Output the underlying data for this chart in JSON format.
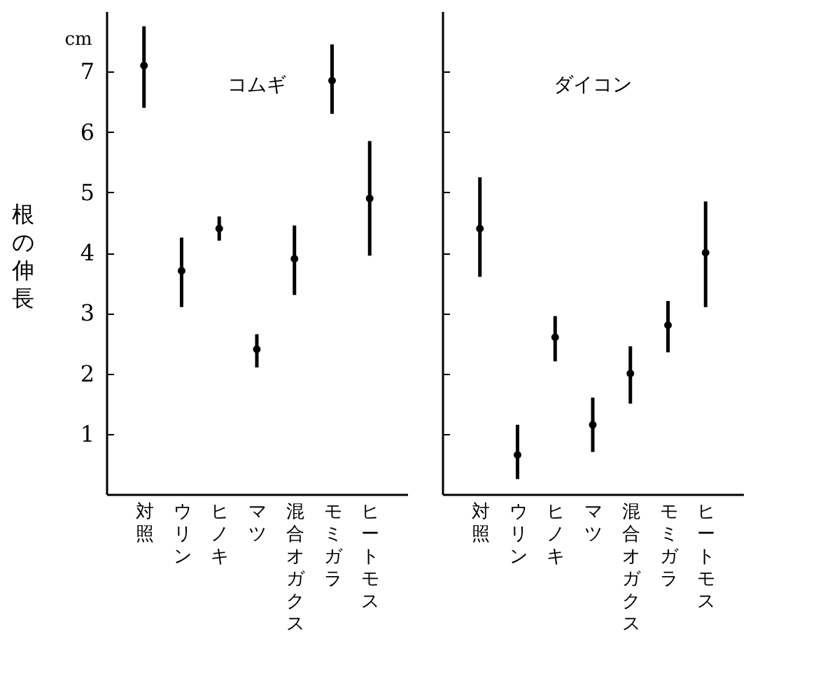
{
  "chart_data": [
    {
      "type": "scatter",
      "title": "コムギ",
      "ylabel": "根の伸長",
      "annotations": [
        "cm"
      ],
      "categories": [
        "対照",
        "ウリン",
        "ヒノキ",
        "マツ",
        "混合オガクス",
        "モミガラ",
        "ヒートモス"
      ],
      "series": [
        {
          "color": "#000000",
          "values": [
            7.1,
            3.7,
            4.4,
            2.4,
            3.9,
            6.85,
            4.9
          ],
          "errors": [
            [
              6.4,
              7.75
            ],
            [
              3.1,
              4.25
            ],
            [
              4.2,
              4.6
            ],
            [
              2.1,
              2.65
            ],
            [
              3.3,
              4.45
            ],
            [
              6.3,
              7.45
            ],
            [
              3.95,
              5.85
            ]
          ]
        }
      ],
      "ylim": [
        0,
        8
      ],
      "yticks": [
        1,
        2,
        3,
        4,
        5,
        6,
        7
      ],
      "grid": false,
      "marker": "circle"
    },
    {
      "type": "scatter",
      "title": "ダイコン",
      "categories": [
        "対照",
        "ウリン",
        "ヒノキ",
        "マツ",
        "混合オガクス",
        "モミガラ",
        "ヒートモス"
      ],
      "series": [
        {
          "color": "#000000",
          "values": [
            4.4,
            0.65,
            2.6,
            1.15,
            2.0,
            2.8,
            4.0
          ],
          "errors": [
            [
              3.6,
              5.25
            ],
            [
              0.25,
              1.15
            ],
            [
              2.2,
              2.95
            ],
            [
              0.7,
              1.6
            ],
            [
              1.5,
              2.45
            ],
            [
              2.35,
              3.2
            ],
            [
              3.1,
              4.85
            ]
          ]
        }
      ],
      "ylim": [
        0,
        8
      ],
      "yticks": [
        1,
        2,
        3,
        4,
        5,
        6,
        7
      ],
      "grid": false,
      "marker": "circle",
      "tick_labels": "x"
    }
  ]
}
